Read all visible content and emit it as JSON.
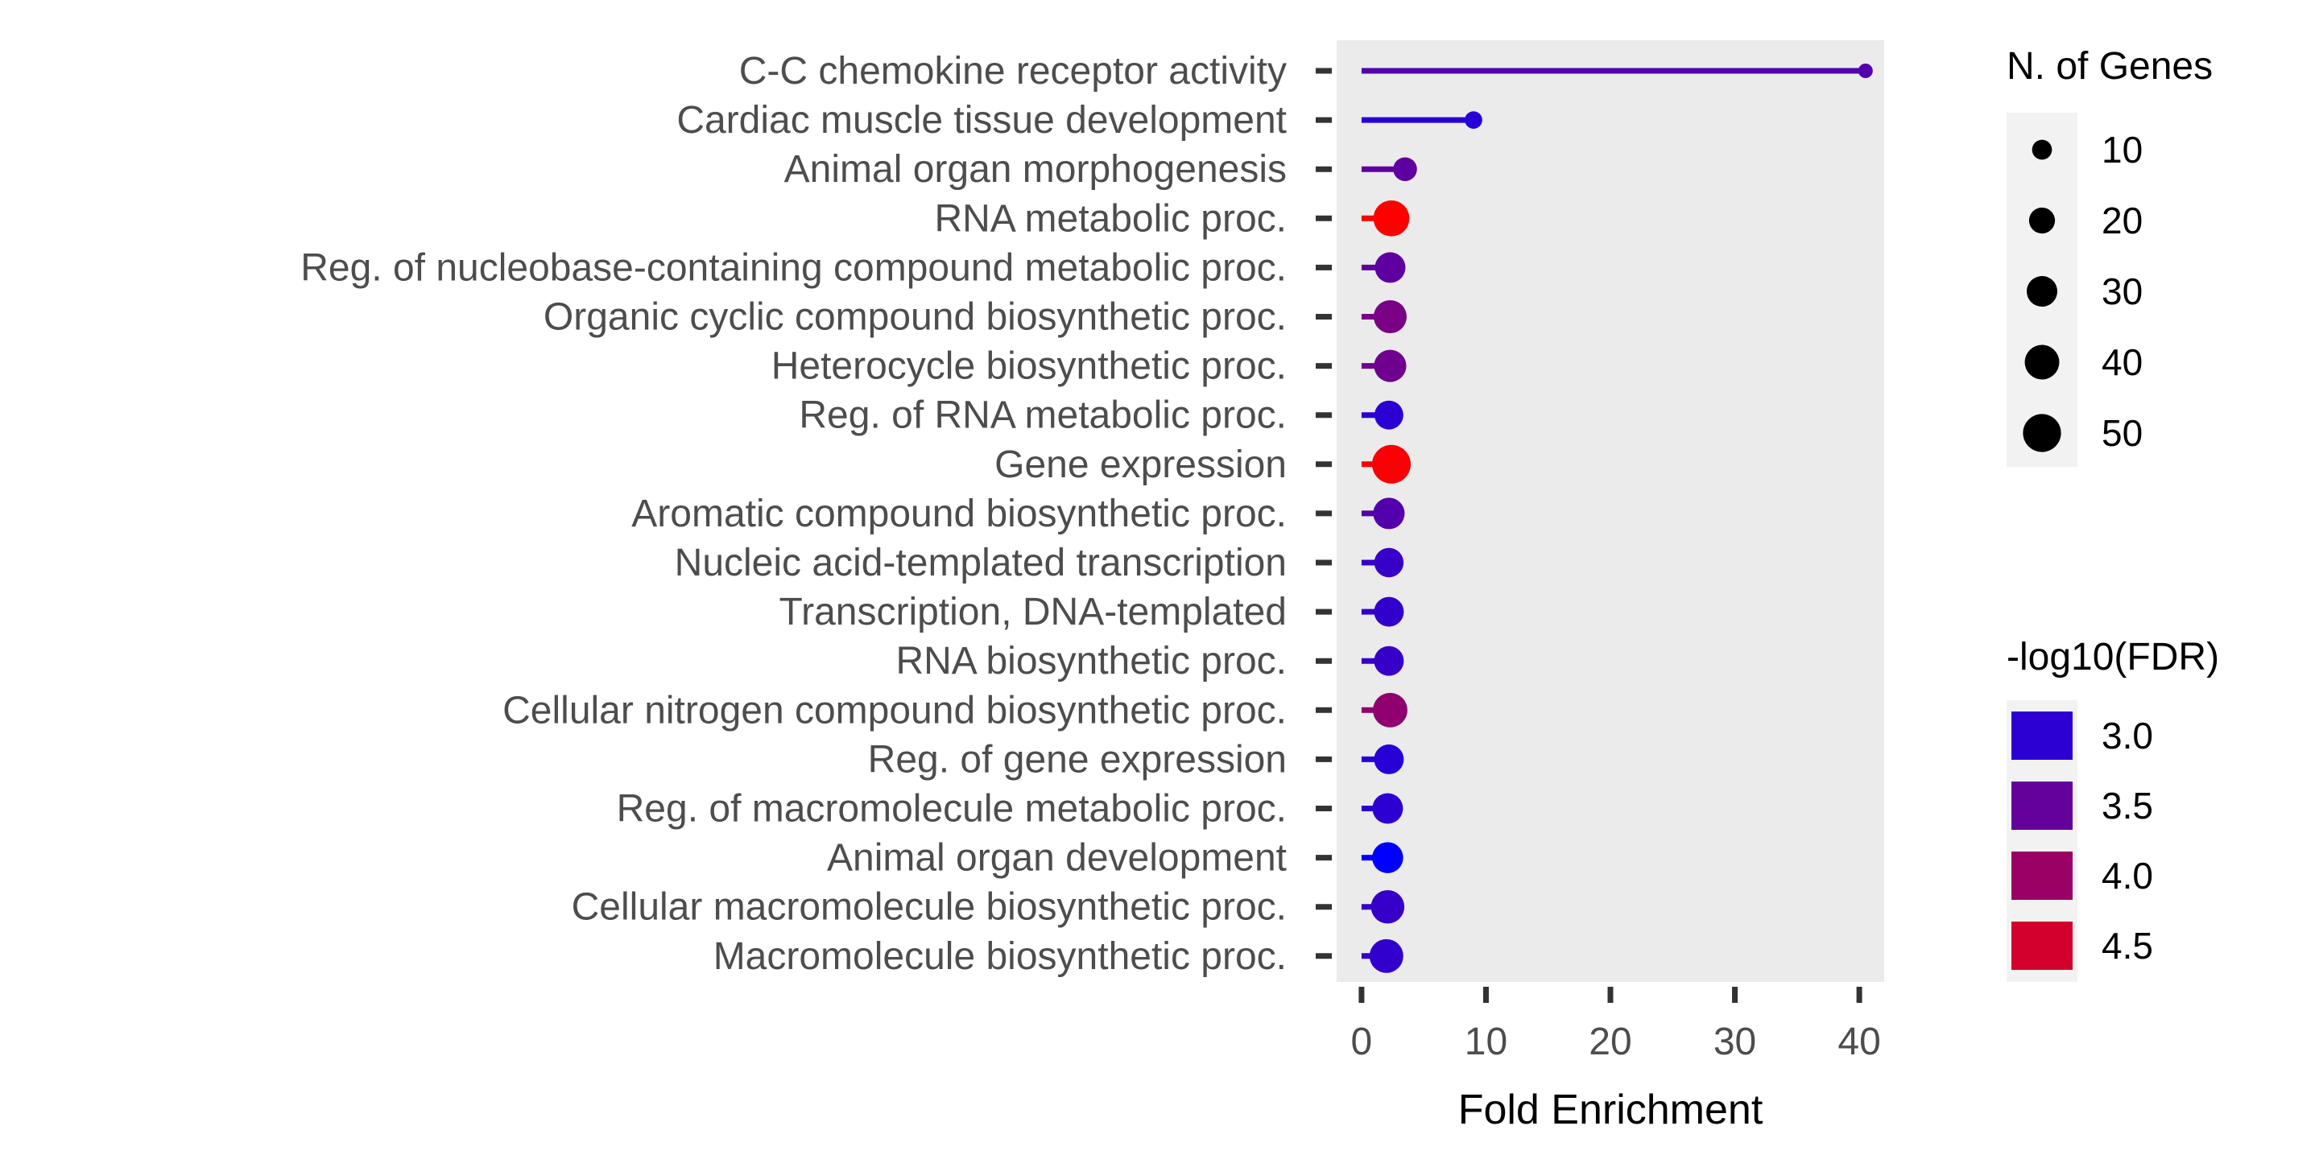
{
  "chart_data": {
    "type": "lollipop",
    "xlabel": "Fold Enrichment",
    "ylabel": "",
    "xlim": [
      -2,
      42
    ],
    "x_ticks": [
      0,
      10,
      20,
      30,
      40
    ],
    "grid": false,
    "panel_background": "#ebebeb",
    "categories": [
      "C-C chemokine receptor activity",
      "Cardiac muscle tissue development",
      "Animal organ morphogenesis",
      "RNA metabolic proc.",
      "Reg. of nucleobase-containing compound metabolic proc.",
      "Organic cyclic compound biosynthetic proc.",
      "Heterocycle biosynthetic proc.",
      "Reg. of RNA metabolic proc.",
      "Gene expression",
      "Aromatic compound biosynthetic proc.",
      "Nucleic acid-templated transcription",
      "Transcription, DNA-templated",
      "RNA biosynthetic proc.",
      "Cellular nitrogen compound biosynthetic proc.",
      "Reg. of gene expression",
      "Reg. of macromolecule metabolic proc.",
      "Animal organ development",
      "Cellular macromolecule biosynthetic proc.",
      "Macromolecule biosynthetic proc."
    ],
    "fold_enrichment": [
      40.5,
      9.0,
      3.5,
      2.4,
      2.3,
      2.3,
      2.3,
      2.2,
      2.4,
      2.2,
      2.2,
      2.2,
      2.2,
      2.3,
      2.2,
      2.1,
      2.1,
      2.1,
      2.0
    ],
    "n_genes": [
      4,
      7,
      16,
      44,
      30,
      36,
      34,
      26,
      52,
      32,
      27,
      28,
      28,
      40,
      28,
      30,
      31,
      37,
      38
    ],
    "neg_log10_fdr": [
      3.35,
      2.95,
      3.45,
      4.9,
      3.45,
      3.7,
      3.6,
      3.0,
      4.85,
      3.35,
      3.1,
      3.05,
      3.1,
      3.9,
      2.95,
      3.0,
      2.6,
      3.1,
      3.05
    ],
    "legend_position": "right",
    "size_legend": {
      "title": "N. of Genes",
      "values": [
        10,
        20,
        30,
        40,
        50
      ],
      "labels": [
        "10",
        "20",
        "30",
        "40",
        "50"
      ]
    },
    "color_legend": {
      "title": "-log10(FDR)",
      "values": [
        3.0,
        3.5,
        4.0,
        4.5
      ],
      "labels": [
        "3.0",
        "3.5",
        "4.0",
        "4.5"
      ],
      "low_color": "#0000ff",
      "high_color": "#ff0000"
    }
  }
}
